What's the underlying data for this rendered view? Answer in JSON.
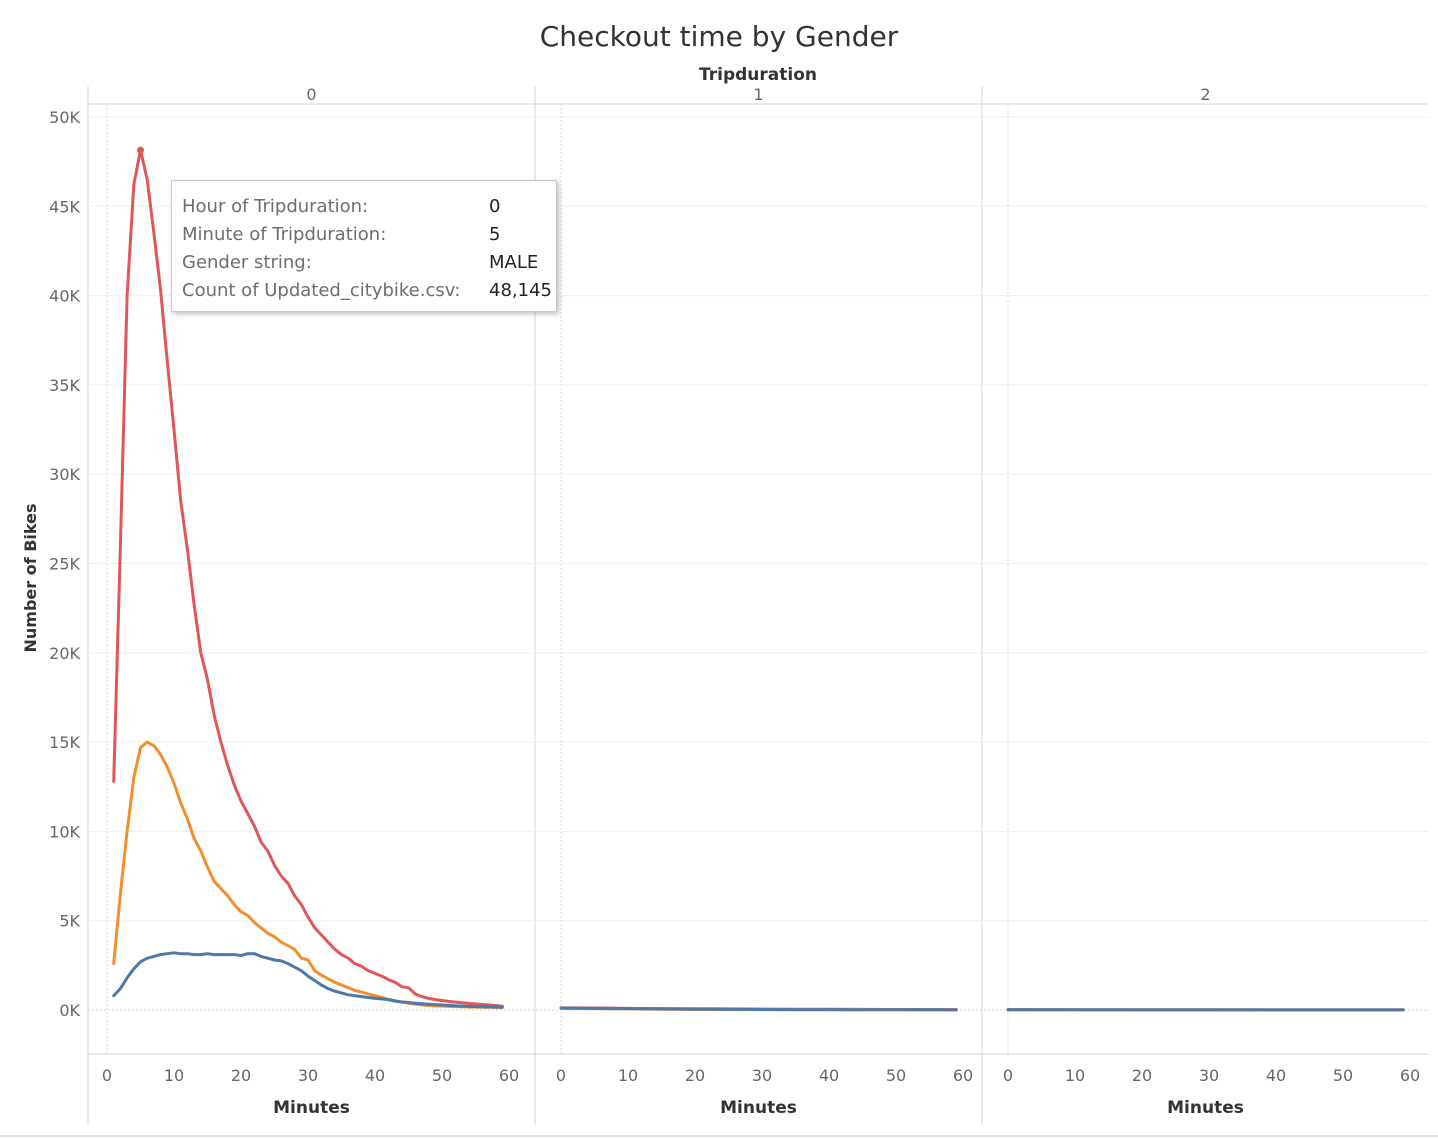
{
  "title": "Checkout time by Gender",
  "chart_data": {
    "type": "line",
    "title": "Checkout time by Gender",
    "column_header": "Tripduration",
    "panels": [
      "0",
      "1",
      "2"
    ],
    "xlabel": "Minutes",
    "ylabel": "Number of Bikes",
    "xticks": [
      0,
      10,
      20,
      30,
      40,
      50,
      60
    ],
    "yticks": [
      "0K",
      "5K",
      "10K",
      "15K",
      "20K",
      "25K",
      "30K",
      "35K",
      "40K",
      "45K",
      "50K"
    ],
    "ylim": [
      0,
      50000
    ],
    "xlim": [
      0,
      60
    ],
    "grid": true,
    "colors": {
      "red": "#e15759",
      "orange": "#f28e2b",
      "blue": "#4e79a7"
    },
    "series": [
      {
        "color": "#e15759",
        "panels": [
          {
            "x": [
              1,
              2,
              3,
              4,
              5,
              6,
              7,
              8,
              9,
              10,
              11,
              12,
              13,
              14,
              15,
              16,
              17,
              18,
              19,
              20,
              21,
              22,
              23,
              24,
              25,
              26,
              27,
              28,
              29,
              30,
              31,
              32,
              33,
              34,
              35,
              36,
              37,
              38,
              39,
              40,
              41,
              42,
              43,
              44,
              45,
              46,
              47,
              48,
              49,
              50,
              51,
              52,
              53,
              54,
              55,
              56,
              57,
              58,
              59
            ],
            "y": [
              12800,
              26000,
              40000,
              46200,
              48145,
              46500,
              43500,
              40300,
              36300,
              32500,
              28500,
              25800,
              22700,
              20000,
              18500,
              16500,
              15000,
              13700,
              12600,
              11700,
              11000,
              10300,
              9400,
              8900,
              8100,
              7500,
              7100,
              6400,
              5900,
              5200,
              4600,
              4200,
              3800,
              3400,
              3100,
              2900,
              2600,
              2450,
              2200,
              2050,
              1900,
              1700,
              1550,
              1300,
              1250,
              900,
              750,
              650,
              580,
              530,
              480,
              440,
              410,
              370,
              340,
              310,
              280,
              250,
              220
            ]
          },
          {
            "x": [
              0,
              5,
              10,
              15,
              20,
              25,
              30,
              35,
              40,
              45,
              50,
              55,
              59
            ],
            "y": [
              120,
              110,
              90,
              80,
              70,
              60,
              50,
              45,
              40,
              35,
              30,
              25,
              20
            ]
          },
          {
            "x": [
              0,
              10,
              20,
              30,
              40,
              50,
              59
            ],
            "y": [
              20,
              15,
              12,
              10,
              8,
              8,
              8
            ]
          }
        ]
      },
      {
        "color": "#f28e2b",
        "panels": [
          {
            "x": [
              1,
              2,
              3,
              4,
              5,
              6,
              7,
              8,
              9,
              10,
              11,
              12,
              13,
              14,
              15,
              16,
              17,
              18,
              19,
              20,
              21,
              22,
              23,
              24,
              25,
              26,
              27,
              28,
              29,
              30,
              31,
              32,
              33,
              34,
              35,
              36,
              37,
              38,
              39,
              40,
              41,
              42,
              43,
              44,
              45,
              46,
              47,
              48,
              49,
              50,
              51,
              52,
              53,
              54,
              55,
              56,
              57,
              58,
              59
            ],
            "y": [
              2600,
              6500,
              10000,
              13000,
              14700,
              15000,
              14800,
              14300,
              13600,
              12700,
              11600,
              10700,
              9600,
              8900,
              8000,
              7200,
              6800,
              6400,
              5900,
              5500,
              5300,
              4900,
              4600,
              4300,
              4100,
              3800,
              3600,
              3400,
              2900,
              2800,
              2200,
              1950,
              1750,
              1550,
              1400,
              1250,
              1100,
              1000,
              900,
              800,
              700,
              600,
              520,
              450,
              380,
              330,
              280,
              260,
              240,
              220,
              200,
              190,
              180,
              170,
              160,
              155,
              150,
              145,
              140
            ]
          },
          {
            "x": [
              0,
              5,
              10,
              15,
              20,
              25,
              30,
              35,
              40,
              45,
              50,
              55,
              59
            ],
            "y": [
              90,
              80,
              60,
              40,
              30,
              25,
              20,
              18,
              15,
              12,
              10,
              8,
              8
            ]
          },
          {
            "x": [
              0,
              10,
              20,
              30,
              40,
              50,
              59
            ],
            "y": [
              8,
              6,
              5,
              5,
              4,
              4,
              4
            ]
          }
        ]
      },
      {
        "color": "#4e79a7",
        "panels": [
          {
            "x": [
              1,
              2,
              3,
              4,
              5,
              6,
              7,
              8,
              9,
              10,
              11,
              12,
              13,
              14,
              15,
              16,
              17,
              18,
              19,
              20,
              21,
              22,
              23,
              24,
              25,
              26,
              27,
              28,
              29,
              30,
              31,
              32,
              33,
              34,
              35,
              36,
              37,
              38,
              39,
              40,
              41,
              42,
              43,
              44,
              45,
              46,
              47,
              48,
              49,
              50,
              51,
              52,
              53,
              54,
              55,
              56,
              57,
              58,
              59
            ],
            "y": [
              800,
              1200,
              1800,
              2300,
              2700,
              2900,
              3000,
              3100,
              3150,
              3200,
              3150,
              3150,
              3100,
              3100,
              3150,
              3100,
              3100,
              3100,
              3100,
              3050,
              3150,
              3150,
              3000,
              2900,
              2800,
              2750,
              2600,
              2400,
              2200,
              1900,
              1650,
              1400,
              1200,
              1050,
              950,
              850,
              800,
              750,
              700,
              650,
              620,
              580,
              500,
              450,
              420,
              380,
              350,
              320,
              300,
              280,
              260,
              240,
              220,
              200,
              190,
              180,
              170,
              165,
              160
            ]
          },
          {
            "x": [
              0,
              5,
              10,
              15,
              20,
              25,
              30,
              35,
              40,
              45,
              50,
              55,
              59
            ],
            "y": [
              110,
              90,
              80,
              60,
              50,
              40,
              30,
              25,
              20,
              15,
              12,
              10,
              8
            ]
          },
          {
            "x": [
              0,
              10,
              20,
              30,
              40,
              50,
              59
            ],
            "y": [
              10,
              10,
              8,
              8,
              6,
              6,
              6
            ]
          }
        ]
      }
    ],
    "highlight": {
      "series_index": 0,
      "panel": 0,
      "x": 5,
      "y": 48145
    }
  },
  "tooltip": {
    "rows": [
      {
        "key": "Hour of Tripduration:",
        "value": "0"
      },
      {
        "key": "Minute of Tripduration:",
        "value": "5"
      },
      {
        "key": "Gender string:",
        "value": "MALE"
      },
      {
        "key": "Count of Updated_citybike.csv:",
        "value": "48,145"
      }
    ]
  }
}
